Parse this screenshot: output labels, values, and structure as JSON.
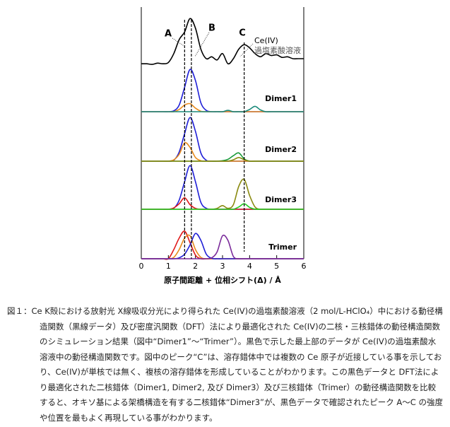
{
  "chart_data": {
    "type": "line",
    "xlabel": "原子間距離 + 位相シフト(Δ) / Å",
    "xlim": [
      0,
      6
    ],
    "xticks": [
      0,
      1,
      2,
      3,
      4,
      5,
      6
    ],
    "ylim": [
      0,
      1
    ],
    "x": [
      0,
      0.2,
      0.4,
      0.6,
      0.8,
      1.0,
      1.2,
      1.4,
      1.6,
      1.8,
      2.0,
      2.2,
      2.4,
      2.6,
      2.8,
      3.0,
      3.2,
      3.4,
      3.6,
      3.8,
      4.0,
      4.2,
      4.4,
      4.6,
      4.8,
      5.0,
      5.2,
      5.4,
      5.6,
      5.8,
      6.0
    ],
    "vlines": [
      1.6,
      1.85,
      3.8
    ],
    "panels": [
      {
        "label": "Ce(IV)",
        "sublabel": "過塩素酸溶液",
        "annotations": [
          "A",
          "B",
          "C"
        ],
        "series": [
          {
            "color": "#000000",
            "values": [
              0.22,
              0.22,
              0.21,
              0.23,
              0.22,
              0.24,
              0.38,
              0.6,
              0.72,
              0.93,
              0.78,
              0.45,
              0.3,
              0.33,
              0.28,
              0.38,
              0.22,
              0.3,
              0.45,
              0.52,
              0.47,
              0.38,
              0.33,
              0.38,
              0.35,
              0.36,
              0.32,
              0.33,
              0.3,
              0.3,
              0.3
            ]
          }
        ]
      },
      {
        "label": "Dimer1",
        "series": [
          {
            "color": "#1f1fd6",
            "values": [
              0,
              0,
              0,
              0,
              0,
              0,
              0.02,
              0.15,
              0.55,
              0.95,
              0.7,
              0.2,
              0.03,
              0,
              0,
              0,
              0,
              0,
              0,
              0,
              0,
              0,
              0,
              0,
              0,
              0,
              0,
              0,
              0,
              0,
              0
            ]
          },
          {
            "color": "#e88a1a",
            "values": [
              0,
              0,
              0,
              0,
              0,
              0,
              0,
              0.05,
              0.15,
              0.18,
              0.08,
              0.01,
              0,
              0,
              0,
              0,
              0,
              0,
              0,
              0,
              0,
              0,
              0,
              0,
              0,
              0,
              0,
              0,
              0,
              0,
              0
            ]
          },
          {
            "color": "#1a8a7a",
            "values": [
              0,
              0,
              0,
              0,
              0,
              0,
              0,
              0,
              0,
              0,
              0,
              0,
              0,
              0,
              0,
              0,
              0.03,
              0,
              0,
              0,
              0.05,
              0.12,
              0.04,
              0,
              0,
              0,
              0,
              0,
              0,
              0,
              0
            ]
          }
        ]
      },
      {
        "label": "Dimer2",
        "series": [
          {
            "color": "#1f1fd6",
            "values": [
              0,
              0,
              0,
              0,
              0,
              0,
              0.02,
              0.2,
              0.6,
              0.95,
              0.65,
              0.18,
              0.02,
              0,
              0,
              0,
              0,
              0,
              0,
              0,
              0,
              0,
              0,
              0,
              0,
              0,
              0,
              0,
              0,
              0,
              0
            ]
          },
          {
            "color": "#e88a1a",
            "values": [
              0,
              0,
              0,
              0,
              0,
              0,
              0.03,
              0.15,
              0.4,
              0.3,
              0.08,
              0.01,
              0,
              0,
              0,
              0,
              0,
              0,
              0,
              0,
              0,
              0,
              0,
              0,
              0,
              0,
              0,
              0,
              0,
              0,
              0
            ]
          },
          {
            "color": "#1a9a3a",
            "values": [
              0,
              0,
              0,
              0,
              0,
              0,
              0,
              0,
              0,
              0,
              0,
              0,
              0,
              0,
              0,
              0.01,
              0.04,
              0.12,
              0.18,
              0.05,
              0,
              0,
              0,
              0,
              0,
              0,
              0,
              0,
              0,
              0,
              0
            ]
          },
          {
            "color": "#8a8a10",
            "values": [
              0,
              0,
              0,
              0,
              0,
              0,
              0,
              0,
              0,
              0,
              0,
              0,
              0,
              0,
              0,
              0,
              0,
              0.03,
              0.08,
              0.03,
              0,
              0,
              0,
              0,
              0,
              0,
              0,
              0,
              0,
              0,
              0
            ]
          }
        ]
      },
      {
        "label": "Dimer3",
        "series": [
          {
            "color": "#1f1fd6",
            "values": [
              0,
              0,
              0,
              0,
              0,
              0,
              0.02,
              0.2,
              0.6,
              0.95,
              0.6,
              0.15,
              0.02,
              0,
              0,
              0,
              0,
              0,
              0,
              0,
              0,
              0,
              0,
              0,
              0,
              0,
              0,
              0,
              0,
              0,
              0
            ]
          },
          {
            "color": "#e01a1a",
            "values": [
              0,
              0,
              0,
              0,
              0,
              0,
              0.03,
              0.12,
              0.25,
              0.1,
              0.02,
              0,
              0,
              0,
              0,
              0,
              0,
              0,
              0,
              0,
              0,
              0,
              0,
              0,
              0,
              0,
              0,
              0,
              0,
              0,
              0
            ]
          },
          {
            "color": "#8a8a10",
            "values": [
              0,
              0,
              0,
              0,
              0,
              0,
              0,
              0,
              0,
              0,
              0,
              0,
              0,
              0,
              0.02,
              0.08,
              0.02,
              0.1,
              0.5,
              0.65,
              0.3,
              0.05,
              0,
              0,
              0,
              0,
              0,
              0,
              0,
              0,
              0
            ]
          },
          {
            "color": "#22cc22",
            "values": [
              0,
              0,
              0,
              0,
              0,
              0,
              0,
              0,
              0,
              0,
              0,
              0,
              0,
              0,
              0,
              0,
              0,
              0,
              0.05,
              0.12,
              0.04,
              0,
              0,
              0,
              0,
              0,
              0,
              0,
              0,
              0,
              0
            ]
          }
        ]
      },
      {
        "label": "Trimer",
        "series": [
          {
            "color": "#e01a1a",
            "values": [
              0,
              0,
              0,
              0,
              0,
              0,
              0.2,
              0.45,
              0.6,
              0.35,
              0.08,
              0,
              0,
              0,
              0,
              0,
              0,
              0,
              0,
              0,
              0,
              0,
              0,
              0,
              0,
              0,
              0,
              0,
              0,
              0,
              0
            ]
          },
          {
            "color": "#e88a1a",
            "values": [
              0,
              0,
              0,
              0,
              0,
              0,
              0.03,
              0.2,
              0.45,
              0.5,
              0.2,
              0.03,
              0,
              0,
              0,
              0,
              0,
              0,
              0,
              0,
              0,
              0,
              0,
              0,
              0,
              0,
              0,
              0,
              0,
              0,
              0
            ]
          },
          {
            "color": "#1f1fd6",
            "values": [
              0,
              0,
              0,
              0,
              0,
              0,
              0,
              0.02,
              0.1,
              0.3,
              0.55,
              0.4,
              0.1,
              0.01,
              0,
              0,
              0,
              0,
              0,
              0,
              0,
              0,
              0,
              0,
              0,
              0,
              0,
              0,
              0,
              0,
              0
            ]
          },
          {
            "color": "#7a2a9a",
            "values": [
              0,
              0,
              0,
              0,
              0,
              0,
              0,
              0,
              0,
              0,
              0,
              0,
              0,
              0.02,
              0.15,
              0.5,
              0.4,
              0.05,
              0,
              0,
              0,
              0,
              0,
              0,
              0,
              0,
              0,
              0,
              0,
              0,
              0
            ]
          }
        ]
      }
    ]
  },
  "caption": {
    "label": "図１：",
    "text": "Ce K殻における放射光 X線吸収分光により得られた Ce(IV)の過塩素酸溶液（2 mol/L-HClO₄）中における動径構造関数（黒線データ）及び密度汎関数（DFT）法により最適化された Ce(IV)の二核・三核錯体の動径構造関数のシミュレーション結果（図中“Dimer1”～“Trimer”）。黒色で示した最上部のデータが Ce(IV)の過塩素酸水溶液中の動径構造関数です。図中のピーク“C”は、溶存錯体中では複数の Ce 原子が近接している事を示しており、Ce(IV)が単核では無く、複核の溶存錯体を形成していることがわかります。この黒色データと DFT法により最適化された二核錯体（Dimer1, Dimer2, 及び Dimer3）及び三核錯体（Trimer）の動径構造関数を比較すると、オキソ基による架橋構造を有する二核錯体“Dimer3”が、黒色データで確認されたピーク A～C の強度や位置を最もよく再現している事がわかります。"
  }
}
